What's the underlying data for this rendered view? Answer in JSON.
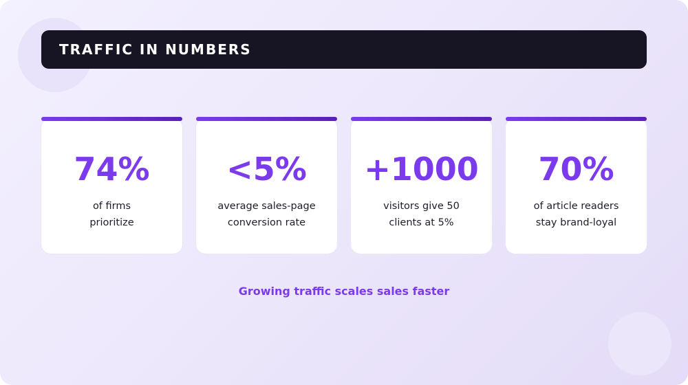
{
  "title": "TRAFFIC IN NUMBERS",
  "colors": {
    "accent": "#7c3aed",
    "accent_dark": "#5b21b6",
    "title_bar": "#171523",
    "card_text": "#1f1d2b"
  },
  "stats": [
    {
      "value": "74%",
      "label_lines": [
        "of firms",
        "prioritize"
      ]
    },
    {
      "value": "<5%",
      "label_lines": [
        "average sales-page",
        "conversion rate"
      ]
    },
    {
      "value": "+1000",
      "label_lines": [
        "visitors give 50",
        "clients at 5%"
      ]
    },
    {
      "value": "70%",
      "label_lines": [
        "of article readers",
        "stay brand-loyal"
      ]
    }
  ],
  "footer": "Growing traffic scales sales faster"
}
